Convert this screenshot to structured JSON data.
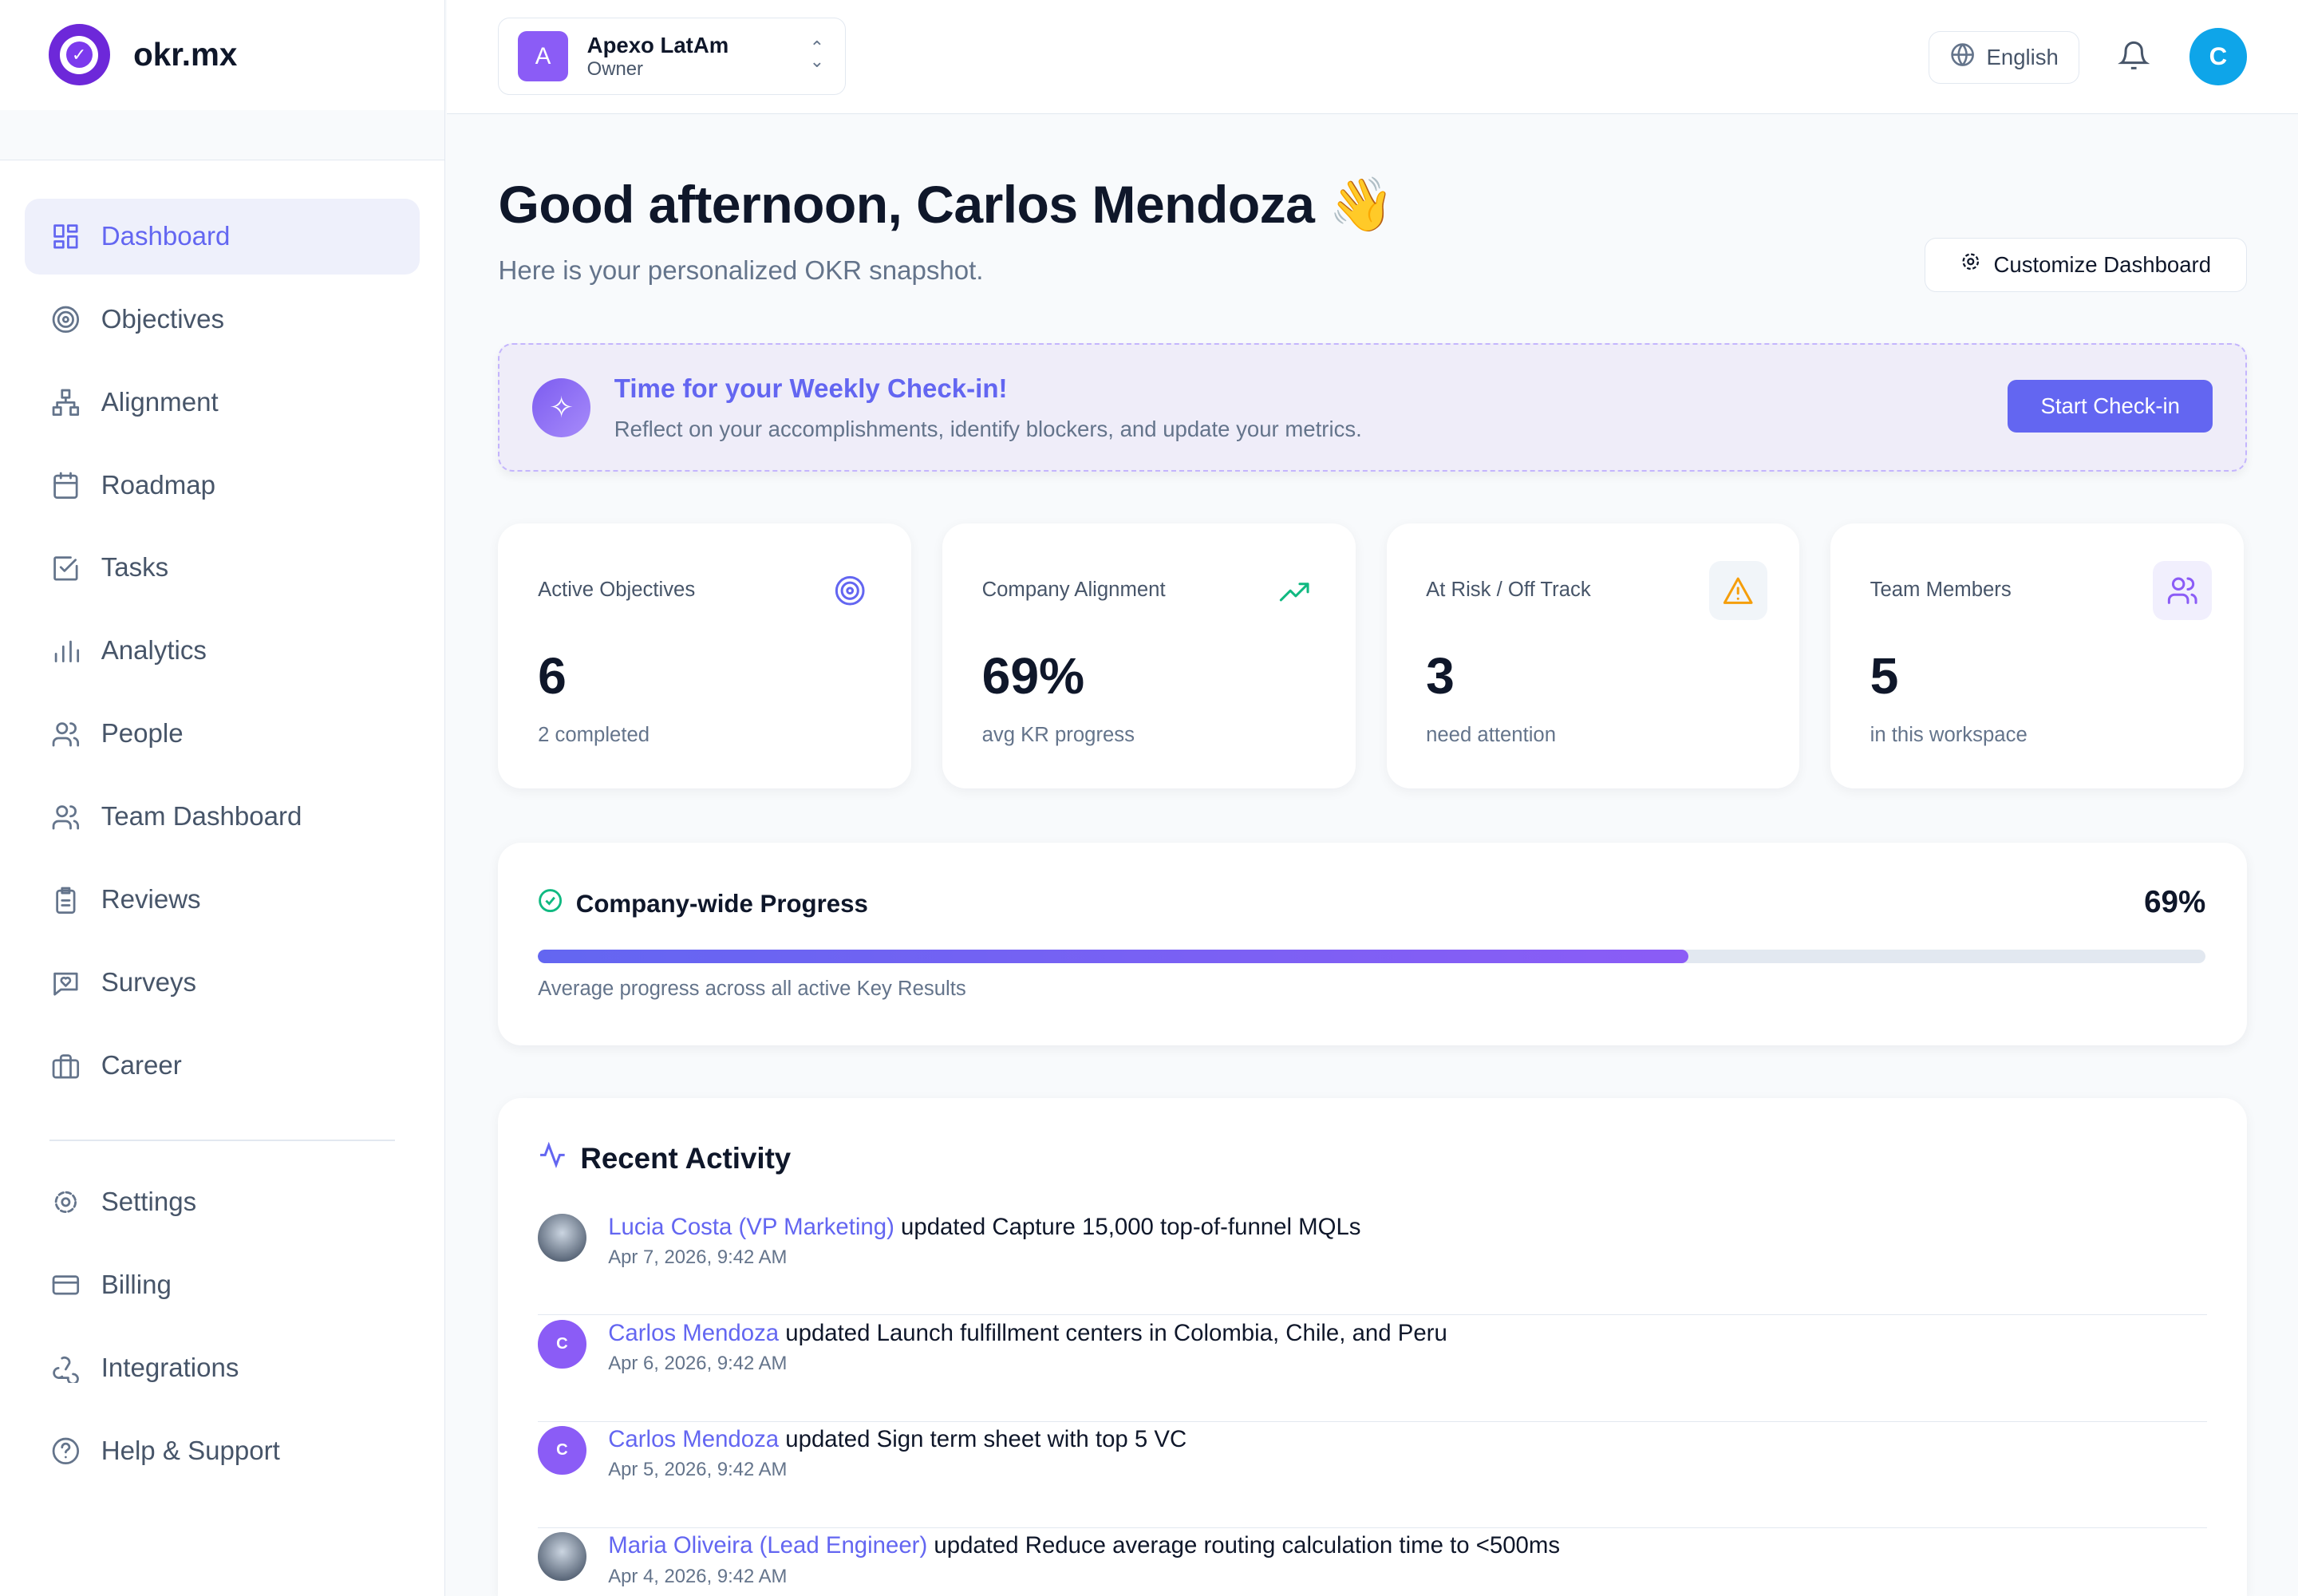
{
  "brand": {
    "name": "okr.mx",
    "accent": "#6366f1"
  },
  "sidebar": {
    "items": [
      {
        "label": "Dashboard",
        "icon": "dashboard-icon",
        "active": true
      },
      {
        "label": "Objectives",
        "icon": "target-icon"
      },
      {
        "label": "Alignment",
        "icon": "hierarchy-icon"
      },
      {
        "label": "Roadmap",
        "icon": "calendar-icon"
      },
      {
        "label": "Tasks",
        "icon": "checkbox-icon"
      },
      {
        "label": "Analytics",
        "icon": "bar-chart-icon"
      },
      {
        "label": "People",
        "icon": "users-icon"
      },
      {
        "label": "Team Dashboard",
        "icon": "users-icon"
      },
      {
        "label": "Reviews",
        "icon": "clipboard-icon"
      },
      {
        "label": "Surveys",
        "icon": "message-heart-icon"
      },
      {
        "label": "Career",
        "icon": "briefcase-icon"
      }
    ],
    "bottom_items": [
      {
        "label": "Settings",
        "icon": "gear-icon"
      },
      {
        "label": "Billing",
        "icon": "credit-card-icon"
      },
      {
        "label": "Integrations",
        "icon": "webhook-icon"
      },
      {
        "label": "Help & Support",
        "icon": "help-circle-icon"
      }
    ]
  },
  "header": {
    "workspace": {
      "initial": "A",
      "name": "Apexo LatAm",
      "role": "Owner"
    },
    "language": "English",
    "user_initial": "C"
  },
  "main": {
    "greeting": "Good afternoon, Carlos Mendoza 👋",
    "subtitle": "Here is your personalized OKR snapshot.",
    "customize_label": "Customize Dashboard",
    "banner": {
      "title": "Time for your Weekly Check-in!",
      "text": "Reflect on your accomplishments, identify blockers, and update your metrics.",
      "button": "Start Check-in"
    },
    "stats": [
      {
        "label": "Active Objectives",
        "value": "6",
        "sub": "2 completed",
        "icon": "target-icon"
      },
      {
        "label": "Company Alignment",
        "value": "69%",
        "sub": "avg KR progress",
        "icon": "trending-up-icon"
      },
      {
        "label": "At Risk / Off Track",
        "value": "3",
        "sub": "need attention",
        "icon": "warning-icon"
      },
      {
        "label": "Team Members",
        "value": "5",
        "sub": "in this workspace",
        "icon": "users-icon"
      }
    ],
    "progress": {
      "title": "Company-wide Progress",
      "value_label": "69%",
      "value": 69,
      "subtitle": "Average progress across all active Key Results"
    },
    "activity": {
      "title": "Recent Activity",
      "items": [
        {
          "who": "Lucia Costa (VP Marketing)",
          "what": "updated Capture 15,000 top-of-funnel MQLs",
          "time": "Apr 7, 2026, 9:42 AM",
          "avatar": "photo"
        },
        {
          "who": "Carlos Mendoza",
          "what": "updated Launch fulfillment centers in Colombia, Chile, and Peru",
          "time": "Apr 6, 2026, 9:42 AM",
          "avatar": "C"
        },
        {
          "who": "Carlos Mendoza",
          "what": "updated Sign term sheet with top 5 VC",
          "time": "Apr 5, 2026, 9:42 AM",
          "avatar": "C"
        },
        {
          "who": "Maria Oliveira (Lead Engineer)",
          "what": "updated Reduce average routing calculation time to <500ms",
          "time": "Apr 4, 2026, 9:42 AM",
          "avatar": "photo"
        }
      ]
    }
  }
}
